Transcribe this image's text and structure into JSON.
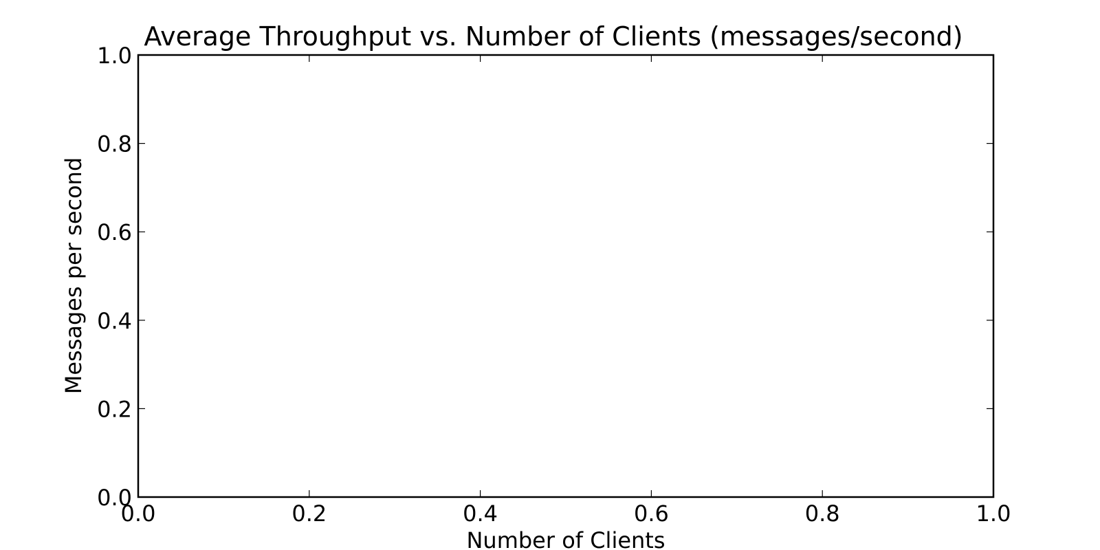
{
  "chart_data": {
    "type": "line",
    "title": "Average Throughput vs. Number of Clients (messages/second)",
    "xlabel": "Number of Clients",
    "ylabel": "Messages per second",
    "xlim": [
      0.0,
      1.0
    ],
    "ylim": [
      0.0,
      1.0
    ],
    "x_ticks": [
      "0.0",
      "0.2",
      "0.4",
      "0.6",
      "0.8",
      "1.0"
    ],
    "y_ticks": [
      "0.0",
      "0.2",
      "0.4",
      "0.6",
      "0.8",
      "1.0"
    ],
    "grid": false,
    "series": []
  }
}
